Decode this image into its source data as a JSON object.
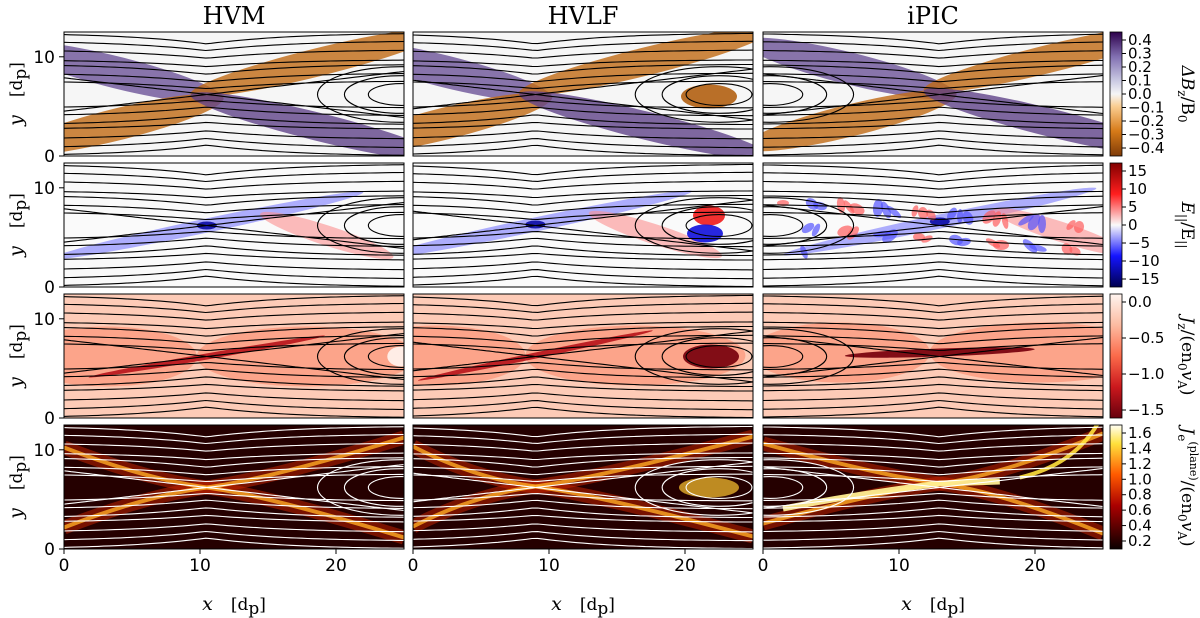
{
  "chart_data": {
    "type": "heatmap",
    "layout": "4 rows x 3 columns of panels with magnetic field lines overlaid",
    "columns": [
      "HVM",
      "HVLF",
      "iPIC"
    ],
    "x_axis": {
      "label": "x",
      "unit": "[d_p]",
      "range": [
        0,
        25
      ],
      "ticks": [
        0,
        10,
        20
      ]
    },
    "y_axis": {
      "label": "y",
      "unit": "[d_p]",
      "range": [
        0,
        12.5
      ],
      "ticks": [
        0,
        10
      ]
    },
    "rows": [
      {
        "quantity": "ΔB_z/B_0",
        "colormap": "purple-orange diverging (PuOr_r)",
        "range": [
          -0.4,
          0.4
        ],
        "colorbar_ticks": [
          "0.4",
          "0.3",
          "0.2",
          "0.1",
          "0.0",
          "−0.1",
          "−0.2",
          "−0.3",
          "−0.4"
        ]
      },
      {
        "quantity": "E_||/Ē_||",
        "colormap": "blue-white-red diverging (seismic)",
        "range": [
          -15,
          15
        ],
        "colorbar_ticks": [
          "15",
          "10",
          "5",
          "0",
          "−5",
          "−10",
          "−15"
        ]
      },
      {
        "quantity": "J_z/(e n_0 v_A)",
        "colormap": "reds reversed",
        "range": [
          -1.8,
          0.2
        ],
        "colorbar_ticks": [
          "0.0",
          "−0.5",
          "−1.0",
          "−1.5"
        ]
      },
      {
        "quantity": "J_e^(plane)/(e n_0 v_A)",
        "colormap": "hot",
        "range": [
          0.1,
          1.6
        ],
        "colorbar_ticks": [
          "1.6",
          "1.4",
          "1.2",
          "1.0",
          "0.8",
          "0.6",
          "0.4",
          "0.2"
        ]
      }
    ],
    "x_points": [
      {
        "label": "HVM",
        "x": 10.5,
        "y": 6.2
      },
      {
        "label": "HVLF",
        "x": 9.0,
        "y": 6.3
      },
      {
        "label": "iPIC",
        "x": 13.0,
        "y": 6.6
      }
    ],
    "o_points": [
      {
        "label": "HVM",
        "x": 24.8,
        "y": 6.2
      },
      {
        "label": "HVLF",
        "x": 22.5,
        "y": 6.2
      },
      {
        "label": "iPIC",
        "x": 0.5,
        "y": 6.2
      }
    ]
  },
  "text": {
    "col_titles": [
      "HVM",
      "HVLF",
      "iPIC"
    ],
    "ylab": "y",
    "xlab": "x",
    "unit_main": "[d",
    "unit_sub": "p",
    "unit_close": "]",
    "cb_labels": [
      {
        "main": "ΔB",
        "sub": "z",
        "rest": "/B",
        "sub2": "0"
      },
      {
        "main": "E",
        "sub": "||",
        "rest": "/E",
        "sub2": "||"
      },
      {
        "main": "J",
        "sub": "z",
        "rest": "/(en",
        "sub2": "0",
        "tail": "v",
        "sub3": "A",
        "end": ")"
      },
      {
        "main": "J",
        "sub": "e",
        "sup": "(plane)",
        "rest": "/(en",
        "sub2": "0",
        "tail": "v",
        "sub3": "A",
        "end": ")"
      }
    ]
  }
}
